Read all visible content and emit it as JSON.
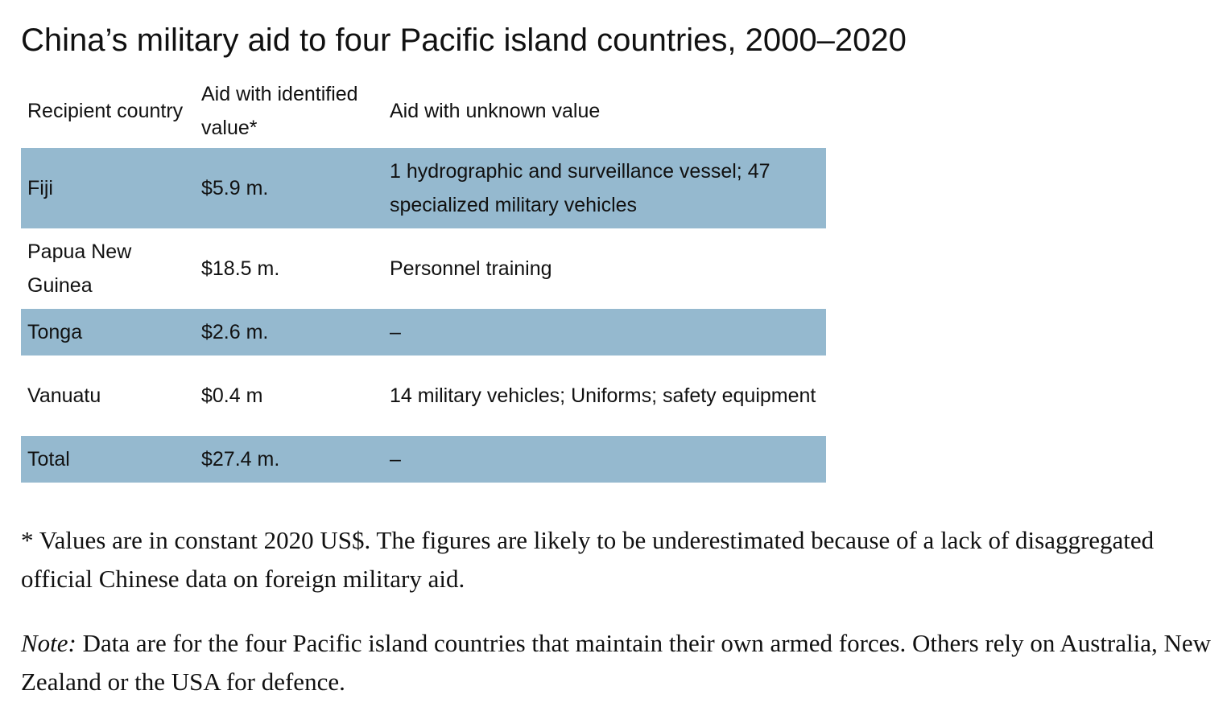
{
  "title": "China’s military aid to four Pacific island countries, 2000–2020",
  "table": {
    "headers": [
      "Recipient country",
      "Aid with identified value*",
      "Aid with unknown value"
    ],
    "rows": [
      {
        "country": "Fiji",
        "identified": "$5.9 m.",
        "unknown": "1 hydrographic and surveillance vessel; 47 specialized military vehicles"
      },
      {
        "country": "Papua New Guinea",
        "identified": "$18.5 m.",
        "unknown": "Personnel training"
      },
      {
        "country": "Tonga",
        "identified": "$2.6 m.",
        "unknown": "–"
      },
      {
        "country": "Vanuatu",
        "identified": "$0.4 m",
        "unknown": "14 military vehicles; Uniforms; safety equipment"
      },
      {
        "country": "Total",
        "identified": "$27.4 m.",
        "unknown": "–"
      }
    ]
  },
  "footnote": "* Values are in constant 2020 US$. The figures are likely to be underestimated because of a lack of disaggregated official Chinese data on foreign military aid.",
  "note": {
    "label": "Note:",
    "text": " Data are for the four Pacific island countries that maintain their own armed forces. Others rely on Australia, New Zealand or the USA for defence."
  },
  "colors": {
    "row_shading": "#95b9cf",
    "text": "#111111",
    "background": "#ffffff"
  }
}
